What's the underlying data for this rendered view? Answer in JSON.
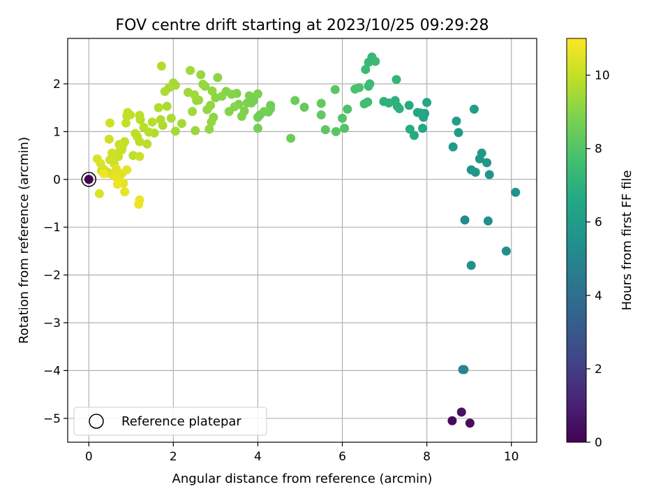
{
  "chart_data": {
    "type": "scatter",
    "title": "FOV centre drift starting at 2023/10/25 09:29:28",
    "xlabel": "Angular distance from reference (arcmin)",
    "ylabel": "Rotation from reference (arcmin)",
    "xlim": [
      -0.5,
      10.6
    ],
    "ylim": [
      -5.5,
      2.95
    ],
    "xticks": [
      0,
      2,
      4,
      6,
      8,
      10
    ],
    "yticks": [
      -5,
      -4,
      -3,
      -2,
      -1,
      0,
      1,
      2
    ],
    "grid": true,
    "colorbar": {
      "label": "Hours from first FF file",
      "range": [
        0,
        11
      ],
      "ticks": [
        0,
        2,
        4,
        6,
        8,
        10
      ],
      "colormap": "viridis"
    },
    "legend": {
      "position": "lower-left",
      "entries": [
        "Reference platepar"
      ]
    },
    "reference_point": {
      "x": 0,
      "y": 0,
      "hours": 0
    },
    "points": [
      [
        8.6,
        -5.05,
        0.3
      ],
      [
        8.82,
        -4.87,
        0.5
      ],
      [
        9.02,
        -5.1,
        0.4
      ],
      [
        8.85,
        -3.98,
        4.9
      ],
      [
        8.88,
        -3.98,
        5.0
      ],
      [
        9.88,
        -1.5,
        5.4
      ],
      [
        9.05,
        -1.8,
        5.5
      ],
      [
        9.45,
        -0.87,
        5.4
      ],
      [
        8.9,
        -0.85,
        5.3
      ],
      [
        10.1,
        -0.27,
        5.6
      ],
      [
        9.05,
        0.2,
        5.7
      ],
      [
        9.15,
        0.15,
        5.8
      ],
      [
        9.25,
        0.43,
        5.8
      ],
      [
        9.3,
        0.55,
        5.9
      ],
      [
        9.42,
        0.35,
        5.8
      ],
      [
        9.48,
        0.1,
        5.7
      ],
      [
        8.62,
        0.68,
        6.0
      ],
      [
        8.75,
        0.98,
        6.0
      ],
      [
        8.7,
        1.22,
        6.1
      ],
      [
        9.12,
        1.47,
        6.1
      ],
      [
        7.9,
        1.07,
        6.6
      ],
      [
        7.92,
        1.3,
        6.5
      ],
      [
        7.95,
        1.38,
        6.4
      ],
      [
        7.85,
        1.39,
        6.5
      ],
      [
        7.7,
        0.92,
        6.7
      ],
      [
        7.6,
        1.05,
        6.8
      ],
      [
        7.58,
        1.55,
        6.7
      ],
      [
        7.78,
        1.4,
        6.6
      ],
      [
        8.0,
        1.61,
        6.5
      ],
      [
        7.3,
        1.53,
        6.9
      ],
      [
        7.35,
        1.48,
        7.0
      ],
      [
        7.25,
        1.65,
        7.0
      ],
      [
        7.1,
        1.6,
        7.1
      ],
      [
        6.98,
        1.63,
        7.0
      ],
      [
        7.28,
        2.09,
        7.2
      ],
      [
        6.7,
        2.56,
        7.3
      ],
      [
        6.62,
        2.45,
        7.3
      ],
      [
        6.78,
        2.47,
        7.4
      ],
      [
        6.55,
        2.3,
        7.4
      ],
      [
        6.62,
        1.95,
        7.5
      ],
      [
        6.6,
        1.62,
        7.6
      ],
      [
        6.65,
        2.0,
        7.5
      ],
      [
        6.52,
        1.58,
        7.6
      ],
      [
        6.4,
        1.92,
        7.8
      ],
      [
        6.3,
        1.89,
        7.8
      ],
      [
        6.12,
        1.47,
        7.9
      ],
      [
        6.0,
        1.28,
        8.0
      ],
      [
        6.05,
        1.07,
        8.0
      ],
      [
        5.85,
        1.0,
        8.1
      ],
      [
        5.83,
        1.88,
        8.1
      ],
      [
        5.6,
        1.04,
        8.2
      ],
      [
        5.5,
        1.35,
        8.3
      ],
      [
        5.5,
        1.59,
        8.3
      ],
      [
        5.1,
        1.51,
        8.4
      ],
      [
        4.88,
        1.65,
        8.5
      ],
      [
        4.78,
        0.86,
        8.5
      ],
      [
        4.3,
        1.55,
        8.6
      ],
      [
        4.25,
        1.41,
        8.6
      ],
      [
        4.3,
        1.48,
        8.6
      ],
      [
        4.15,
        1.42,
        8.7
      ],
      [
        4.05,
        1.35,
        8.7
      ],
      [
        4.0,
        1.07,
        8.7
      ],
      [
        4.0,
        1.3,
        8.6
      ],
      [
        4.0,
        1.79,
        8.8
      ],
      [
        3.9,
        1.65,
        8.7
      ],
      [
        3.85,
        1.6,
        8.8
      ],
      [
        3.8,
        1.75,
        8.8
      ],
      [
        3.75,
        1.6,
        8.8
      ],
      [
        3.68,
        1.43,
        8.9
      ],
      [
        3.62,
        1.32,
        8.9
      ],
      [
        3.55,
        1.57,
        8.9
      ],
      [
        3.5,
        1.8,
        8.9
      ],
      [
        3.45,
        1.52,
        9.0
      ],
      [
        3.38,
        1.78,
        9.0
      ],
      [
        3.32,
        1.42,
        9.0
      ],
      [
        3.25,
        1.84,
        9.0
      ],
      [
        3.15,
        1.74,
        9.1
      ],
      [
        3.05,
        2.13,
        9.1
      ],
      [
        3.0,
        1.71,
        9.1
      ],
      [
        2.95,
        1.3,
        9.1
      ],
      [
        2.92,
        1.85,
        9.2
      ],
      [
        2.9,
        1.2,
        9.2
      ],
      [
        2.88,
        1.55,
        9.2
      ],
      [
        2.85,
        1.05,
        9.2
      ],
      [
        2.8,
        1.46,
        9.2
      ],
      [
        2.75,
        1.95,
        9.2
      ],
      [
        2.7,
        1.99,
        9.3
      ],
      [
        2.65,
        2.19,
        9.3
      ],
      [
        2.6,
        1.66,
        9.3
      ],
      [
        2.55,
        1.65,
        9.3
      ],
      [
        2.52,
        1.02,
        9.3
      ],
      [
        2.5,
        1.77,
        9.4
      ],
      [
        2.45,
        1.42,
        9.4
      ],
      [
        2.4,
        2.28,
        9.4
      ],
      [
        2.35,
        1.82,
        9.4
      ],
      [
        2.2,
        1.17,
        9.5
      ],
      [
        2.05,
        1.97,
        9.5
      ],
      [
        2.05,
        1.01,
        9.5
      ],
      [
        2.0,
        2.02,
        9.5
      ],
      [
        1.95,
        1.28,
        9.6
      ],
      [
        1.9,
        1.92,
        9.6
      ],
      [
        1.85,
        1.53,
        9.6
      ],
      [
        1.8,
        1.84,
        9.6
      ],
      [
        1.75,
        1.13,
        9.6
      ],
      [
        1.72,
        2.37,
        9.7
      ],
      [
        1.7,
        1.25,
        9.7
      ],
      [
        1.65,
        1.5,
        9.7
      ],
      [
        1.55,
        0.97,
        9.7
      ],
      [
        1.5,
        1.2,
        9.8
      ],
      [
        1.42,
        0.99,
        9.8
      ],
      [
        1.38,
        0.74,
        9.8
      ],
      [
        1.3,
        1.09,
        9.8
      ],
      [
        1.22,
        1.25,
        9.8
      ],
      [
        1.2,
        1.34,
        9.9
      ],
      [
        1.2,
        0.79,
        9.9
      ],
      [
        1.15,
        0.89,
        9.9
      ],
      [
        1.1,
        0.96,
        9.9
      ],
      [
        1.05,
        0.5,
        9.9
      ],
      [
        0.98,
        1.35,
        9.9
      ],
      [
        0.92,
        1.4,
        10.0
      ],
      [
        0.9,
        1.33,
        10.0
      ],
      [
        0.88,
        1.18,
        10.0
      ],
      [
        0.85,
        0.79,
        10.0
      ],
      [
        0.8,
        0.71,
        10.0
      ],
      [
        0.78,
        0.62,
        10.1
      ],
      [
        0.72,
        0.73,
        10.1
      ],
      [
        0.7,
        0.56,
        10.1
      ],
      [
        0.7,
        0.48,
        10.1
      ],
      [
        1.2,
        0.48,
        10.1
      ],
      [
        0.62,
        0.51,
        10.1
      ],
      [
        0.6,
        0.33,
        10.2
      ],
      [
        0.55,
        0.55,
        10.2
      ],
      [
        0.5,
        0.41,
        10.2
      ],
      [
        0.5,
        1.18,
        10.2
      ],
      [
        0.48,
        0.84,
        10.2
      ],
      [
        0.45,
        0.15,
        10.3
      ],
      [
        0.4,
        0.13,
        10.3
      ],
      [
        0.35,
        0.21,
        10.3
      ],
      [
        0.3,
        0.18,
        10.3
      ],
      [
        0.28,
        0.33,
        10.4
      ],
      [
        0.2,
        0.43,
        10.4
      ],
      [
        0.25,
        -0.3,
        10.4
      ],
      [
        0.55,
        0.1,
        10.4
      ],
      [
        0.65,
        0.22,
        10.5
      ],
      [
        0.72,
        0.05,
        10.5
      ],
      [
        0.78,
        0.12,
        10.5
      ],
      [
        0.82,
        -0.08,
        10.5
      ],
      [
        0.85,
        -0.26,
        10.6
      ],
      [
        0.75,
        -0.05,
        10.6
      ],
      [
        0.9,
        0.2,
        10.6
      ],
      [
        0.62,
        0.06,
        10.6
      ],
      [
        1.2,
        -0.43,
        10.7
      ],
      [
        1.18,
        -0.52,
        10.7
      ],
      [
        0.68,
        -0.1,
        10.7
      ],
      [
        0.35,
        0.12,
        10.8
      ]
    ]
  }
}
